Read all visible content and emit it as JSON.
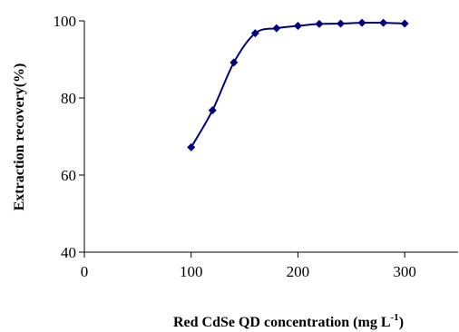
{
  "chart_data": {
    "type": "line",
    "title": "",
    "xlabel": "Red CdSe QD concentration (mg L",
    "xlabel_sup": "-1",
    "xlabel_tail": ")",
    "ylabel": "Extraction recovery(%)",
    "xlim": [
      0,
      350
    ],
    "ylim": [
      40,
      100
    ],
    "xticks": [
      0,
      100,
      200,
      300
    ],
    "yticks": [
      40,
      60,
      80,
      100
    ],
    "xtick_labels": [
      "0",
      "100",
      "200",
      "300"
    ],
    "ytick_labels": [
      "40",
      "60",
      "80",
      "100"
    ],
    "grid": false,
    "legend": "none",
    "series": [
      {
        "color": "#000080",
        "marker": "diamond",
        "x": [
          100,
          120,
          140,
          160,
          180,
          200,
          220,
          240,
          260,
          280,
          300
        ],
        "y": [
          67.2,
          76.8,
          89.2,
          96.8,
          98.1,
          98.7,
          99.2,
          99.3,
          99.5,
          99.5,
          99.3
        ]
      }
    ]
  }
}
